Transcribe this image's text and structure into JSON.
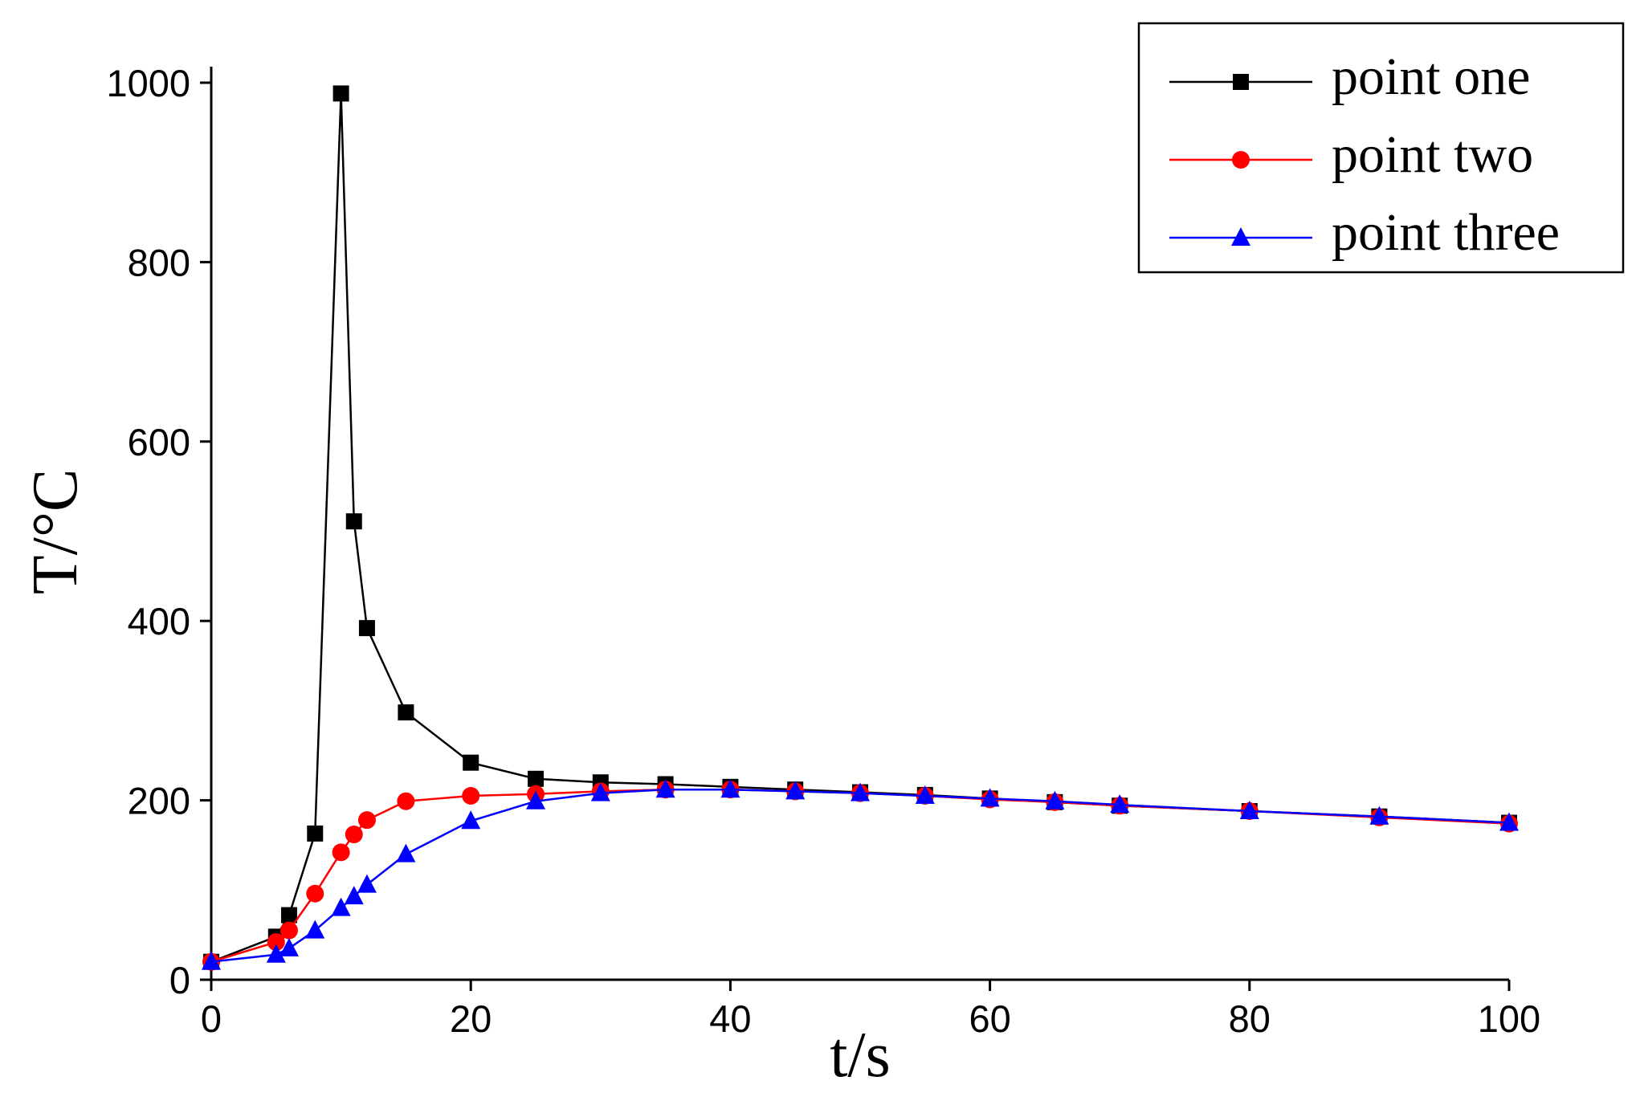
{
  "chart_data": {
    "type": "line",
    "x_label": "t/s",
    "y_label": "T/°C",
    "x": [
      0,
      5,
      6,
      8,
      10,
      11,
      12,
      15,
      20,
      25,
      30,
      35,
      40,
      45,
      50,
      55,
      60,
      65,
      70,
      80,
      90,
      100
    ],
    "series": [
      {
        "name": "point one",
        "color": "#000000",
        "marker": "square",
        "values": [
          20,
          48,
          72,
          163,
          988,
          511,
          392,
          298,
          242,
          224,
          220,
          218,
          215,
          212,
          209,
          206,
          202,
          198,
          194,
          188,
          182,
          175
        ]
      },
      {
        "name": "point two",
        "color": "#ff0000",
        "marker": "circle",
        "values": [
          20,
          42,
          55,
          96,
          142,
          162,
          178,
          199,
          205,
          207,
          210,
          212,
          212,
          210,
          208,
          205,
          201,
          198,
          194,
          188,
          181,
          174
        ]
      },
      {
        "name": "point three",
        "color": "#0000ff",
        "marker": "triangle",
        "values": [
          20,
          28,
          35,
          55,
          80,
          93,
          106,
          140,
          177,
          199,
          208,
          212,
          212,
          210,
          208,
          205,
          202,
          199,
          195,
          188,
          182,
          175
        ]
      }
    ],
    "xlim": [
      0,
      100
    ],
    "xticks": [
      0,
      20,
      40,
      60,
      80,
      100
    ],
    "ylim": [
      0,
      1000
    ],
    "yticks": [
      0,
      200,
      400,
      600,
      800,
      1000
    ],
    "legend": "upper-right"
  }
}
